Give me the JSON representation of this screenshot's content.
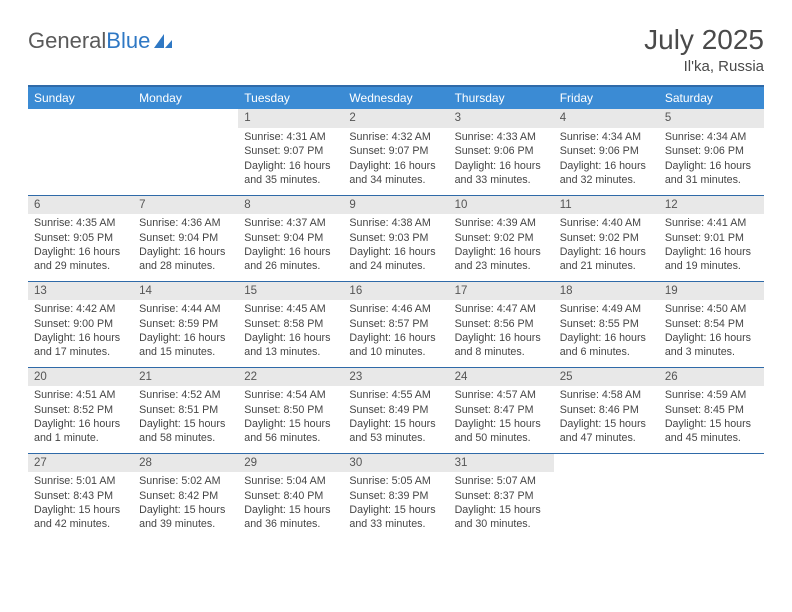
{
  "brand": {
    "part1": "General",
    "part2": "Blue"
  },
  "title": "July 2025",
  "location": "Il'ka, Russia",
  "colors": {
    "header_bg": "#3b8bd4",
    "header_border": "#2f6aa8",
    "daynum_bg": "#e8e8e8",
    "text": "#454545"
  },
  "weekdays": [
    "Sunday",
    "Monday",
    "Tuesday",
    "Wednesday",
    "Thursday",
    "Friday",
    "Saturday"
  ],
  "weeks": [
    [
      null,
      null,
      {
        "n": "1",
        "sunrise": "4:31 AM",
        "sunset": "9:07 PM",
        "daylight": "16 hours and 35 minutes."
      },
      {
        "n": "2",
        "sunrise": "4:32 AM",
        "sunset": "9:07 PM",
        "daylight": "16 hours and 34 minutes."
      },
      {
        "n": "3",
        "sunrise": "4:33 AM",
        "sunset": "9:06 PM",
        "daylight": "16 hours and 33 minutes."
      },
      {
        "n": "4",
        "sunrise": "4:34 AM",
        "sunset": "9:06 PM",
        "daylight": "16 hours and 32 minutes."
      },
      {
        "n": "5",
        "sunrise": "4:34 AM",
        "sunset": "9:06 PM",
        "daylight": "16 hours and 31 minutes."
      }
    ],
    [
      {
        "n": "6",
        "sunrise": "4:35 AM",
        "sunset": "9:05 PM",
        "daylight": "16 hours and 29 minutes."
      },
      {
        "n": "7",
        "sunrise": "4:36 AM",
        "sunset": "9:04 PM",
        "daylight": "16 hours and 28 minutes."
      },
      {
        "n": "8",
        "sunrise": "4:37 AM",
        "sunset": "9:04 PM",
        "daylight": "16 hours and 26 minutes."
      },
      {
        "n": "9",
        "sunrise": "4:38 AM",
        "sunset": "9:03 PM",
        "daylight": "16 hours and 24 minutes."
      },
      {
        "n": "10",
        "sunrise": "4:39 AM",
        "sunset": "9:02 PM",
        "daylight": "16 hours and 23 minutes."
      },
      {
        "n": "11",
        "sunrise": "4:40 AM",
        "sunset": "9:02 PM",
        "daylight": "16 hours and 21 minutes."
      },
      {
        "n": "12",
        "sunrise": "4:41 AM",
        "sunset": "9:01 PM",
        "daylight": "16 hours and 19 minutes."
      }
    ],
    [
      {
        "n": "13",
        "sunrise": "4:42 AM",
        "sunset": "9:00 PM",
        "daylight": "16 hours and 17 minutes."
      },
      {
        "n": "14",
        "sunrise": "4:44 AM",
        "sunset": "8:59 PM",
        "daylight": "16 hours and 15 minutes."
      },
      {
        "n": "15",
        "sunrise": "4:45 AM",
        "sunset": "8:58 PM",
        "daylight": "16 hours and 13 minutes."
      },
      {
        "n": "16",
        "sunrise": "4:46 AM",
        "sunset": "8:57 PM",
        "daylight": "16 hours and 10 minutes."
      },
      {
        "n": "17",
        "sunrise": "4:47 AM",
        "sunset": "8:56 PM",
        "daylight": "16 hours and 8 minutes."
      },
      {
        "n": "18",
        "sunrise": "4:49 AM",
        "sunset": "8:55 PM",
        "daylight": "16 hours and 6 minutes."
      },
      {
        "n": "19",
        "sunrise": "4:50 AM",
        "sunset": "8:54 PM",
        "daylight": "16 hours and 3 minutes."
      }
    ],
    [
      {
        "n": "20",
        "sunrise": "4:51 AM",
        "sunset": "8:52 PM",
        "daylight": "16 hours and 1 minute."
      },
      {
        "n": "21",
        "sunrise": "4:52 AM",
        "sunset": "8:51 PM",
        "daylight": "15 hours and 58 minutes."
      },
      {
        "n": "22",
        "sunrise": "4:54 AM",
        "sunset": "8:50 PM",
        "daylight": "15 hours and 56 minutes."
      },
      {
        "n": "23",
        "sunrise": "4:55 AM",
        "sunset": "8:49 PM",
        "daylight": "15 hours and 53 minutes."
      },
      {
        "n": "24",
        "sunrise": "4:57 AM",
        "sunset": "8:47 PM",
        "daylight": "15 hours and 50 minutes."
      },
      {
        "n": "25",
        "sunrise": "4:58 AM",
        "sunset": "8:46 PM",
        "daylight": "15 hours and 47 minutes."
      },
      {
        "n": "26",
        "sunrise": "4:59 AM",
        "sunset": "8:45 PM",
        "daylight": "15 hours and 45 minutes."
      }
    ],
    [
      {
        "n": "27",
        "sunrise": "5:01 AM",
        "sunset": "8:43 PM",
        "daylight": "15 hours and 42 minutes."
      },
      {
        "n": "28",
        "sunrise": "5:02 AM",
        "sunset": "8:42 PM",
        "daylight": "15 hours and 39 minutes."
      },
      {
        "n": "29",
        "sunrise": "5:04 AM",
        "sunset": "8:40 PM",
        "daylight": "15 hours and 36 minutes."
      },
      {
        "n": "30",
        "sunrise": "5:05 AM",
        "sunset": "8:39 PM",
        "daylight": "15 hours and 33 minutes."
      },
      {
        "n": "31",
        "sunrise": "5:07 AM",
        "sunset": "8:37 PM",
        "daylight": "15 hours and 30 minutes."
      },
      null,
      null
    ]
  ],
  "labels": {
    "sunrise": "Sunrise:",
    "sunset": "Sunset:",
    "daylight": "Daylight:"
  }
}
